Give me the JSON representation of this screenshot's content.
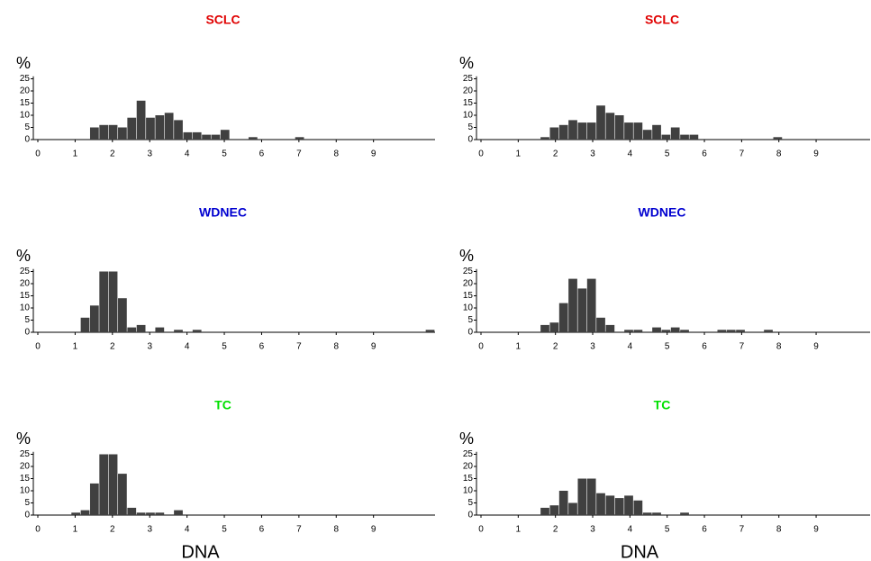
{
  "chart_data": [
    {
      "type": "histogram",
      "title": "SCLC",
      "title_color": "#e00000",
      "ylabel": "%",
      "color": "#404040",
      "bins": [
        1.4,
        1.65,
        1.9,
        2.15,
        2.4,
        2.65,
        2.9,
        3.15,
        3.4,
        3.65,
        3.9,
        4.15,
        4.4,
        4.65,
        4.9,
        5.15,
        5.4,
        5.65,
        5.9,
        6.15,
        6.4,
        6.65,
        6.9,
        7.15
      ],
      "values": [
        5,
        6,
        6,
        5,
        9,
        16,
        9,
        10,
        11,
        8,
        3,
        3,
        2,
        2,
        4,
        0,
        0,
        1,
        0,
        0,
        0,
        0,
        1
      ],
      "xlim": [
        0,
        10.65
      ],
      "ylim": [
        0,
        26
      ],
      "xticks": [
        0,
        1,
        2,
        3,
        4,
        5,
        6,
        7,
        8,
        9
      ],
      "yticks": [
        0,
        5,
        10,
        15,
        20,
        25
      ]
    },
    {
      "type": "histogram",
      "title": "SCLC",
      "title_color": "#e00000",
      "ylabel": "%",
      "color": "#404040",
      "bins": [
        1.6,
        1.85,
        2.1,
        2.35,
        2.6,
        2.85,
        3.1,
        3.35,
        3.6,
        3.85,
        4.1,
        4.35,
        4.6,
        4.85,
        5.1,
        5.35,
        5.6,
        5.85,
        6.1,
        6.35,
        6.6,
        6.85,
        7.1,
        7.35,
        7.6,
        7.85,
        8.1
      ],
      "values": [
        1,
        5,
        6,
        8,
        7,
        7,
        14,
        11,
        10,
        7,
        7,
        4,
        6,
        2,
        5,
        2,
        2,
        0,
        0,
        0,
        0,
        0,
        0,
        0,
        0,
        1
      ],
      "xlim": [
        0,
        10.45
      ],
      "ylim": [
        0,
        26
      ],
      "xticks": [
        0,
        1,
        2,
        3,
        4,
        5,
        6,
        7,
        8,
        9
      ],
      "yticks": [
        0,
        5,
        10,
        15,
        20,
        25
      ]
    },
    {
      "type": "histogram",
      "title": "WDNEC",
      "title_color": "#0000d0",
      "ylabel": "%",
      "color": "#404040",
      "bins": [
        1.15,
        1.4,
        1.65,
        1.9,
        2.15,
        2.4,
        2.65,
        2.9,
        3.15,
        3.4,
        3.65,
        3.9,
        4.15,
        4.4,
        4.65,
        4.9,
        5.15,
        5.4,
        5.65,
        5.9,
        6.15,
        6.4,
        6.65,
        6.9,
        7.15,
        7.4,
        7.65,
        7.9,
        8.15,
        8.4,
        8.65,
        8.9,
        9.15,
        9.4,
        9.65,
        9.9,
        10.15,
        10.4,
        10.65
      ],
      "values": [
        6,
        11,
        25,
        25,
        14,
        2,
        3,
        0,
        2,
        0,
        1,
        0,
        1,
        0,
        0,
        0,
        0,
        0,
        0,
        0,
        0,
        0,
        0,
        0,
        0,
        0,
        0,
        0,
        0,
        0,
        0,
        0,
        0,
        0,
        0,
        0,
        0,
        1
      ],
      "xlim": [
        0,
        10.65
      ],
      "ylim": [
        0,
        26
      ],
      "xticks": [
        0,
        1,
        2,
        3,
        4,
        5,
        6,
        7,
        8,
        9
      ],
      "yticks": [
        0,
        5,
        10,
        15,
        20,
        25
      ]
    },
    {
      "type": "histogram",
      "title": "WDNEC",
      "title_color": "#0000d0",
      "ylabel": "%",
      "color": "#404040",
      "bins": [
        1.6,
        1.85,
        2.1,
        2.35,
        2.6,
        2.85,
        3.1,
        3.35,
        3.6,
        3.85,
        4.1,
        4.35,
        4.6,
        4.85,
        5.1,
        5.35,
        5.6,
        5.85,
        6.1,
        6.35,
        6.6,
        6.85,
        7.1,
        7.35,
        7.6,
        7.85
      ],
      "values": [
        3,
        4,
        12,
        22,
        18,
        22,
        6,
        3,
        0,
        1,
        1,
        0,
        2,
        1,
        2,
        1,
        0,
        0,
        0,
        1,
        1,
        1,
        0,
        0,
        1
      ],
      "xlim": [
        0,
        10.45
      ],
      "ylim": [
        0,
        26
      ],
      "xticks": [
        0,
        1,
        2,
        3,
        4,
        5,
        6,
        7,
        8,
        9
      ],
      "yticks": [
        0,
        5,
        10,
        15,
        20,
        25
      ]
    },
    {
      "type": "histogram",
      "title": "TC",
      "title_color": "#00e000",
      "ylabel": "%",
      "xlabel": "DNA",
      "color": "#404040",
      "bins": [
        0.9,
        1.15,
        1.4,
        1.65,
        1.9,
        2.15,
        2.4,
        2.65,
        2.9,
        3.15,
        3.4,
        3.65,
        3.9
      ],
      "values": [
        1,
        2,
        13,
        25,
        25,
        17,
        3,
        1,
        1,
        1,
        0,
        2
      ],
      "xlim": [
        0,
        10.65
      ],
      "ylim": [
        0,
        26
      ],
      "xticks": [
        0,
        1,
        2,
        3,
        4,
        5,
        6,
        7,
        8,
        9
      ],
      "yticks": [
        0,
        5,
        10,
        15,
        20,
        25
      ]
    },
    {
      "type": "histogram",
      "title": "TC",
      "title_color": "#00e000",
      "ylabel": "%",
      "xlabel": "DNA",
      "color": "#404040",
      "bins": [
        1.6,
        1.85,
        2.1,
        2.35,
        2.6,
        2.85,
        3.1,
        3.35,
        3.6,
        3.85,
        4.1,
        4.35,
        4.6,
        4.85,
        5.1,
        5.35,
        5.6
      ],
      "values": [
        3,
        4,
        10,
        5,
        15,
        15,
        9,
        8,
        7,
        8,
        6,
        1,
        1,
        0,
        0,
        1
      ],
      "xlim": [
        0,
        10.45
      ],
      "ylim": [
        0,
        26
      ],
      "xticks": [
        0,
        1,
        2,
        3,
        4,
        5,
        6,
        7,
        8,
        9
      ],
      "yticks": [
        0,
        5,
        10,
        15,
        20,
        25
      ]
    }
  ]
}
